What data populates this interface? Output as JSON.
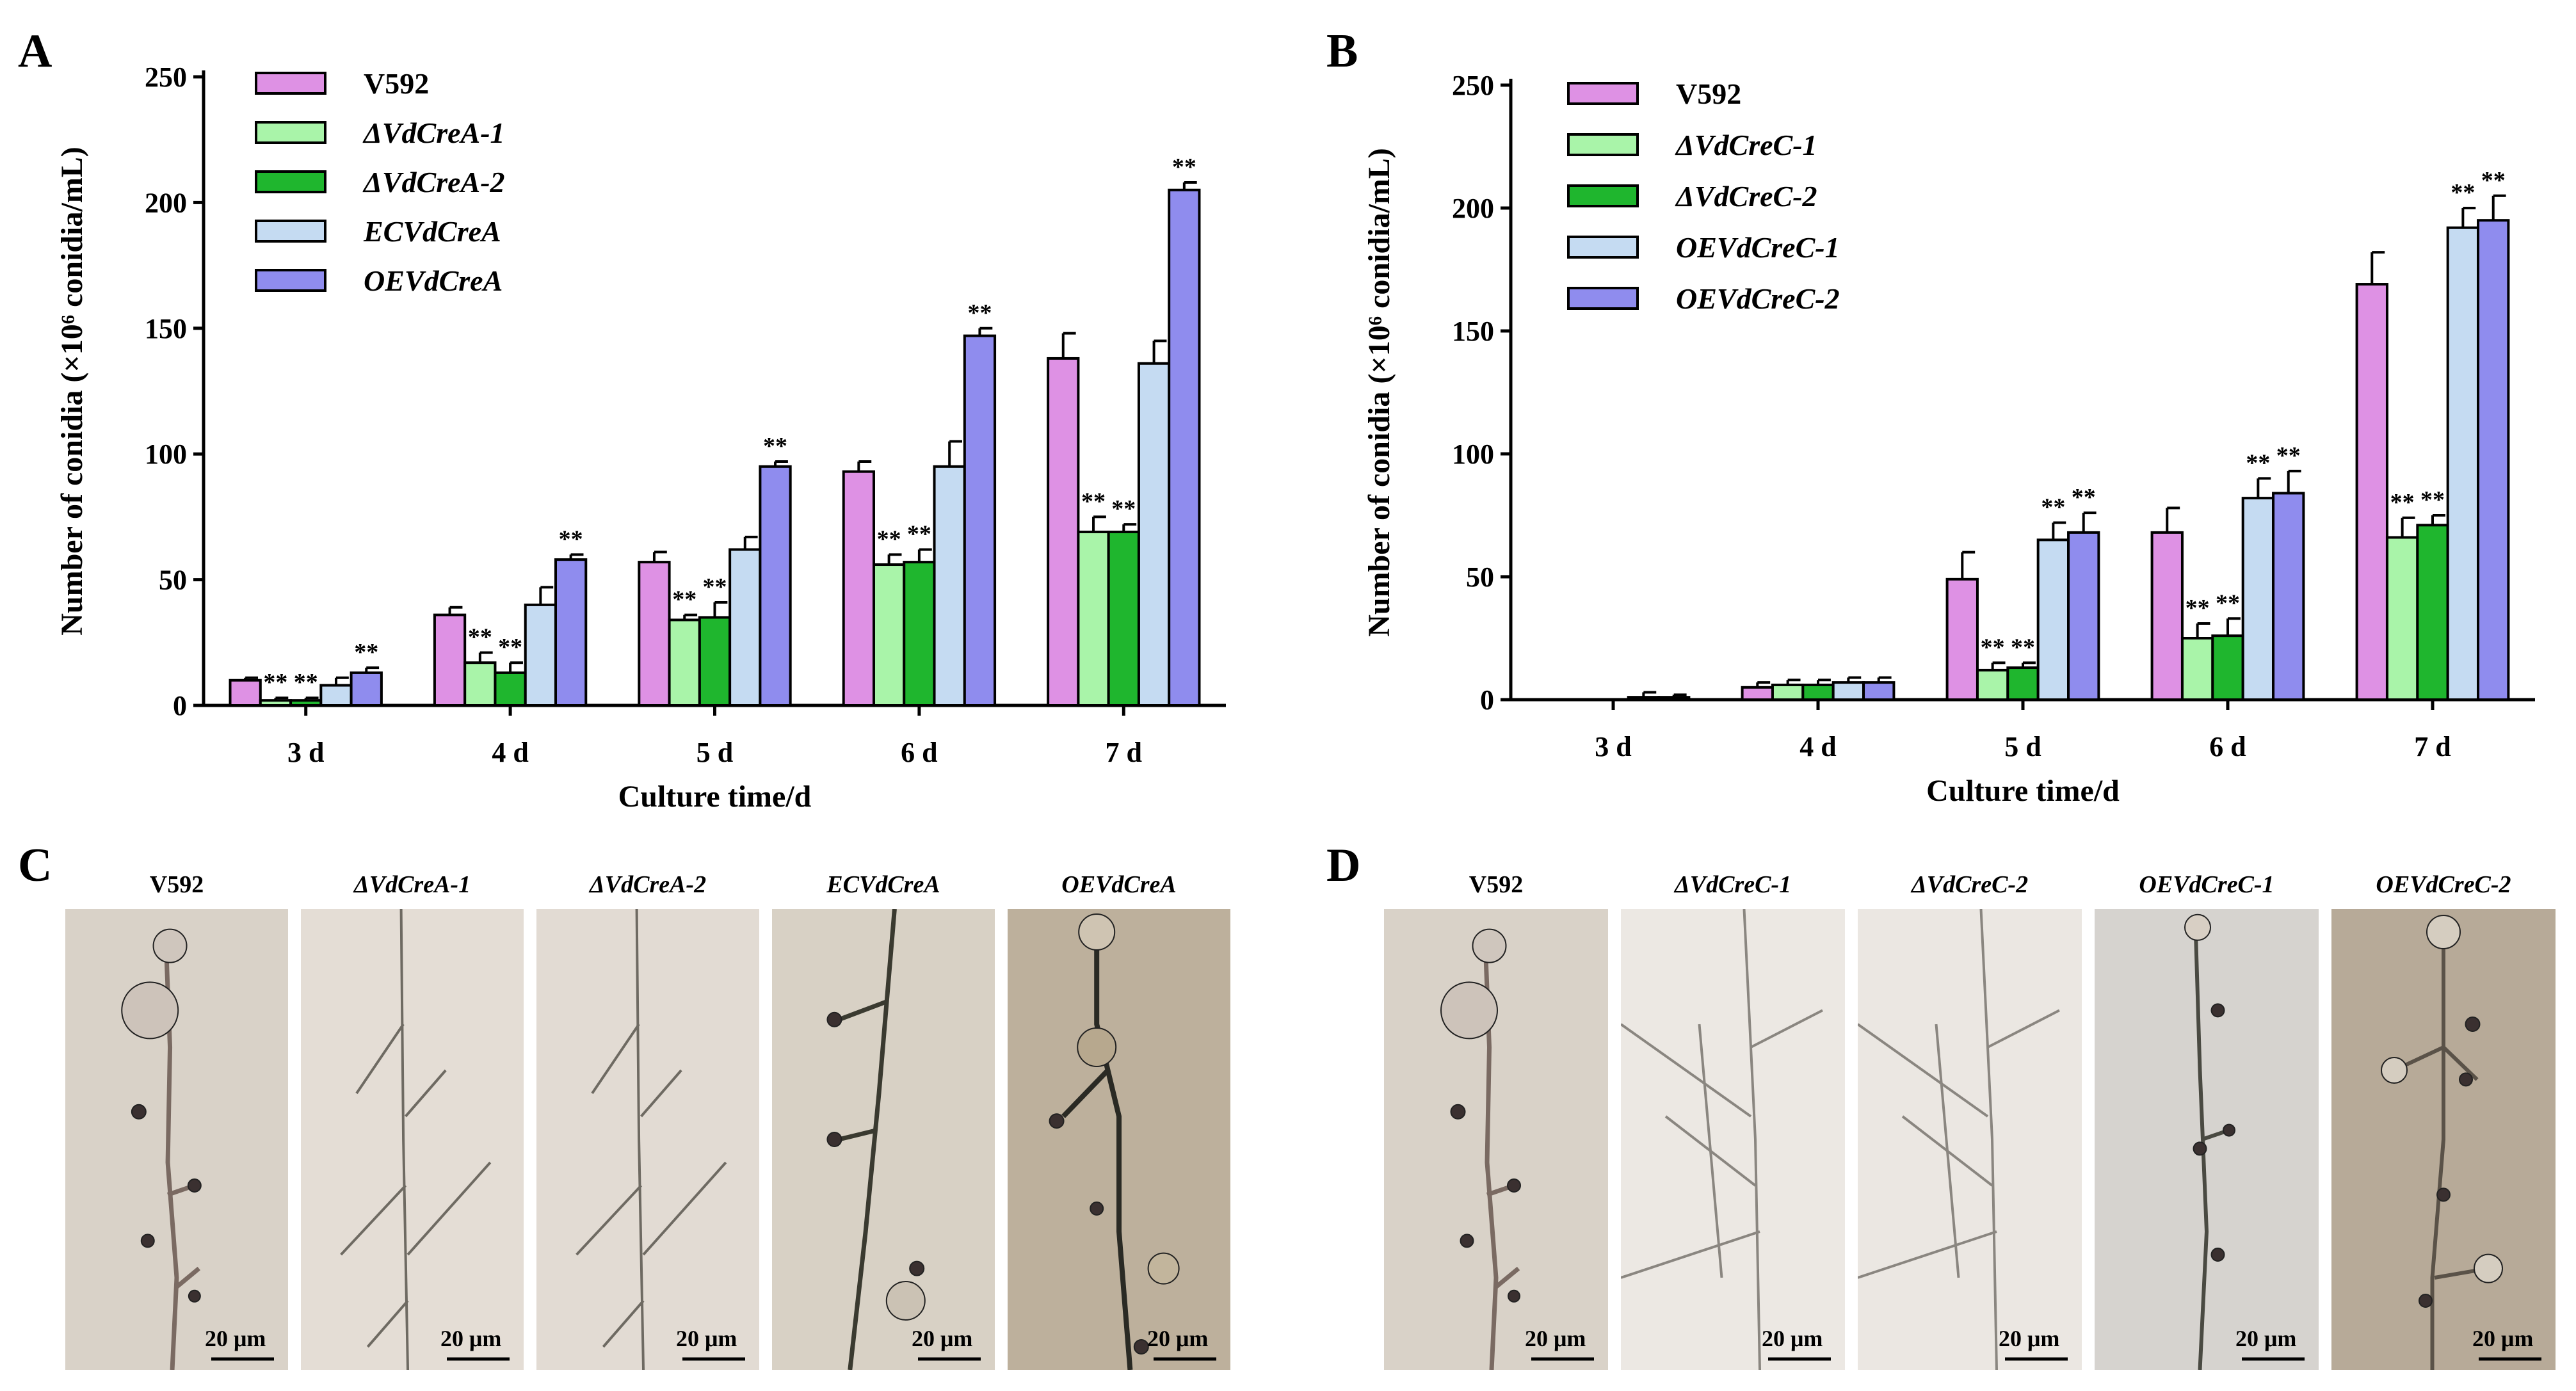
{
  "panels": {
    "A": "A",
    "B": "B",
    "C": "C",
    "D": "D"
  },
  "chart_data": [
    {
      "type": "bar",
      "panel": "A",
      "title": "",
      "xlabel": "Culture time/d",
      "ylabel": "Number of conidia  (×10⁶ conidia/mL)",
      "ylim": [
        0,
        250
      ],
      "yticks": [
        0,
        50,
        100,
        150,
        200,
        250
      ],
      "categories": [
        "3 d",
        "4 d",
        "5 d",
        "6 d",
        "7 d"
      ],
      "legend_position": "top-left",
      "series": [
        {
          "name": "V592",
          "color": "#de91e4",
          "italic": false,
          "values": [
            10,
            36,
            57,
            93,
            138
          ],
          "errors": [
            1,
            3,
            4,
            4,
            10
          ],
          "sig": [
            "",
            "",
            "",
            "",
            ""
          ]
        },
        {
          "name": "ΔVdCreA-1",
          "color": "#a9f4a9",
          "italic": true,
          "values": [
            2,
            17,
            34,
            56,
            69
          ],
          "errors": [
            1,
            4,
            2,
            4,
            6
          ],
          "sig": [
            "**",
            "**",
            "**",
            "**",
            "**"
          ]
        },
        {
          "name": "ΔVdCreA-2",
          "color": "#1fb62e",
          "italic": true,
          "values": [
            2,
            13,
            35,
            57,
            69
          ],
          "errors": [
            1,
            4,
            6,
            5,
            3
          ],
          "sig": [
            "**",
            "**",
            "**",
            "**",
            "**"
          ]
        },
        {
          "name": "ECVdCreA",
          "color": "#c5dbf2",
          "italic": true,
          "values": [
            8,
            40,
            62,
            95,
            136
          ],
          "errors": [
            3,
            7,
            5,
            10,
            9
          ],
          "sig": [
            "",
            "",
            "",
            "",
            ""
          ]
        },
        {
          "name": "OEVdCreA",
          "color": "#8f8cee",
          "italic": true,
          "values": [
            13,
            58,
            95,
            147,
            205
          ],
          "errors": [
            2,
            2,
            2,
            3,
            3
          ],
          "sig": [
            "**",
            "**",
            "**",
            "**",
            "**"
          ]
        }
      ]
    },
    {
      "type": "bar",
      "panel": "B",
      "title": "",
      "xlabel": "Culture time/d",
      "ylabel": "Number of conidia  (×10⁶ conidia/mL)",
      "ylim": [
        0,
        250
      ],
      "yticks": [
        0,
        50,
        100,
        150,
        200,
        250
      ],
      "categories": [
        "3 d",
        "4 d",
        "5 d",
        "6 d",
        "7 d"
      ],
      "legend_position": "top-left",
      "series": [
        {
          "name": "V592",
          "color": "#de91e4",
          "italic": false,
          "values": [
            0,
            5,
            49,
            68,
            169
          ],
          "errors": [
            0,
            2,
            11,
            10,
            13
          ],
          "sig": [
            "",
            "",
            "",
            "",
            ""
          ]
        },
        {
          "name": "ΔVdCreC-1",
          "color": "#a9f4a9",
          "italic": true,
          "values": [
            0,
            6,
            12,
            25,
            66
          ],
          "errors": [
            0,
            2,
            3,
            6,
            8
          ],
          "sig": [
            "",
            "",
            "**",
            "**",
            "**"
          ]
        },
        {
          "name": "ΔVdCreC-2",
          "color": "#1fb62e",
          "italic": true,
          "values": [
            0,
            6,
            13,
            26,
            71
          ],
          "errors": [
            0,
            2,
            2,
            7,
            4
          ],
          "sig": [
            "",
            "",
            "**",
            "**",
            "**"
          ]
        },
        {
          "name": "OEVdCreC-1",
          "color": "#c5dbf2",
          "italic": true,
          "values": [
            1,
            7,
            65,
            82,
            192
          ],
          "errors": [
            2,
            2,
            7,
            8,
            8
          ],
          "sig": [
            "",
            "",
            "**",
            "**",
            "**"
          ]
        },
        {
          "name": "OEVdCreC-2",
          "color": "#8f8cee",
          "italic": true,
          "values": [
            1,
            7,
            68,
            84,
            195
          ],
          "errors": [
            1,
            2,
            8,
            9,
            10
          ],
          "sig": [
            "",
            "",
            "**",
            "**",
            "**"
          ]
        }
      ]
    }
  ],
  "micrographs": {
    "C": [
      {
        "title": "V592",
        "italic": false,
        "scale": "20 μm"
      },
      {
        "title": "ΔVdCreA-1",
        "italic": true,
        "scale": "20 μm"
      },
      {
        "title": "ΔVdCreA-2",
        "italic": true,
        "scale": "20 μm"
      },
      {
        "title": "ECVdCreA",
        "italic": true,
        "scale": "20 μm"
      },
      {
        "title": "OEVdCreA",
        "italic": true,
        "scale": "20 μm"
      }
    ],
    "D": [
      {
        "title": "V592",
        "italic": false,
        "scale": "20 μm"
      },
      {
        "title": "ΔVdCreC-1",
        "italic": true,
        "scale": "20 μm"
      },
      {
        "title": "ΔVdCreC-2",
        "italic": true,
        "scale": "20 μm"
      },
      {
        "title": "OEVdCreC-1",
        "italic": true,
        "scale": "20 μm"
      },
      {
        "title": "OEVdCreC-2",
        "italic": true,
        "scale": "20 μm"
      }
    ]
  }
}
